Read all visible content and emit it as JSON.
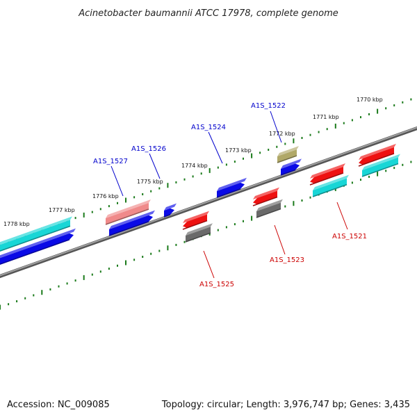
{
  "title": "Acinetobacter baumannii ATCC 17978, complete genome",
  "footer": {
    "accession": "Accession: NC_009085",
    "summary": "Topology: circular; Length: 3,976,747 bp; Genes: 3,435"
  },
  "colors": {
    "backbone": "#7a7a7a",
    "tick": "#1a7a1a",
    "label_top": "#0000cc",
    "label_bottom": "#cc0000",
    "blue": "#0a0ae6",
    "cyan": "#18d6d6",
    "red": "#ee1111",
    "pink": "#f08a8a",
    "gray": "#6a6a6a",
    "khaki": "#b0a868"
  },
  "scale": {
    "labels": [
      "1770 kbp",
      "1771 kbp",
      "1772 kbp",
      "1773 kbp",
      "1774 kbp",
      "1775 kbp",
      "1776 kbp",
      "1777 kbp",
      "1778 kbp"
    ]
  },
  "gene_labels_top": [
    "A1S_1522",
    "A1S_1524",
    "A1S_1526",
    "A1S_1527"
  ],
  "gene_labels_bottom": [
    "A1S_1521",
    "A1S_1523",
    "A1S_1525"
  ]
}
